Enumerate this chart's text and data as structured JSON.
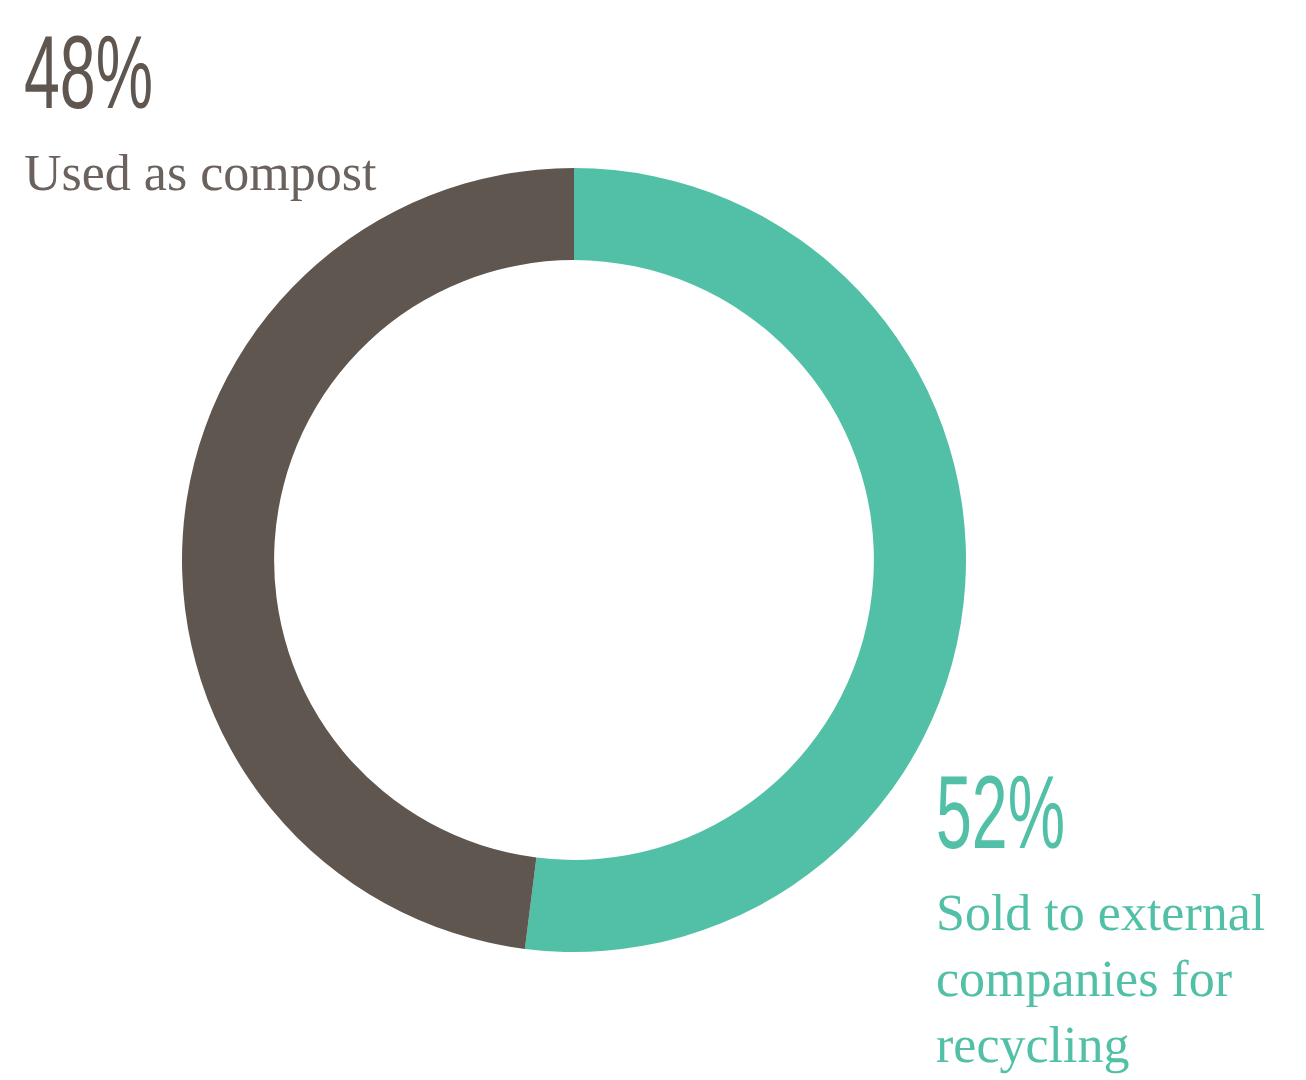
{
  "chart_data": {
    "type": "donut",
    "categories": [
      "Sold to external companies for recycling",
      "Used as compost"
    ],
    "values": [
      52,
      48
    ],
    "value_labels": [
      "52%",
      "48%"
    ],
    "colors": [
      "#52c0a6",
      "#5f5650"
    ],
    "legend": false
  }
}
